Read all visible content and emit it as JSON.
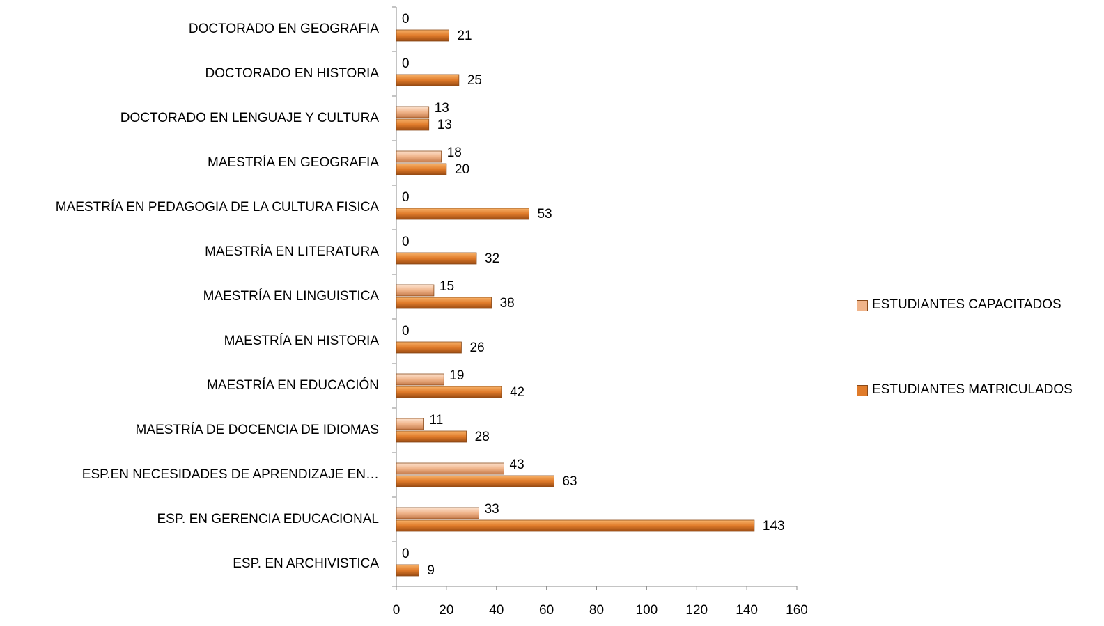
{
  "chart_data": {
    "type": "bar",
    "orientation": "horizontal",
    "categories": [
      "DOCTORADO EN GEOGRAFIA",
      "DOCTORADO EN HISTORIA",
      "DOCTORADO EN LENGUAJE Y CULTURA",
      "MAESTRÍA EN GEOGRAFIA",
      "MAESTRÍA EN PEDAGOGIA DE LA CULTURA FISICA",
      "MAESTRÍA EN LITERATURA",
      "MAESTRÍA EN LINGUISTICA",
      "MAESTRÍA EN HISTORIA",
      "MAESTRÍA EN EDUCACIÓN",
      "MAESTRÍA DE DOCENCIA DE IDIOMAS",
      "ESP.EN NECESIDADES DE APRENDIZAJE EN…",
      "ESP. EN GERENCIA EDUCACIONAL",
      "ESP. EN ARCHIVISTICA"
    ],
    "series": [
      {
        "name": "ESTUDIANTES CAPACITADOS",
        "color": "#f0b48a",
        "values": [
          0,
          0,
          13,
          18,
          0,
          0,
          15,
          0,
          19,
          11,
          43,
          33,
          0
        ]
      },
      {
        "name": "ESTUDIANTES MATRICULADOS",
        "color": "#e07b2a",
        "values": [
          21,
          25,
          13,
          20,
          53,
          32,
          38,
          26,
          42,
          28,
          63,
          143,
          9
        ]
      }
    ],
    "xlim": [
      0,
      160
    ],
    "xticks": [
      0,
      20,
      40,
      60,
      80,
      100,
      120,
      140,
      160
    ],
    "legend": "right"
  }
}
